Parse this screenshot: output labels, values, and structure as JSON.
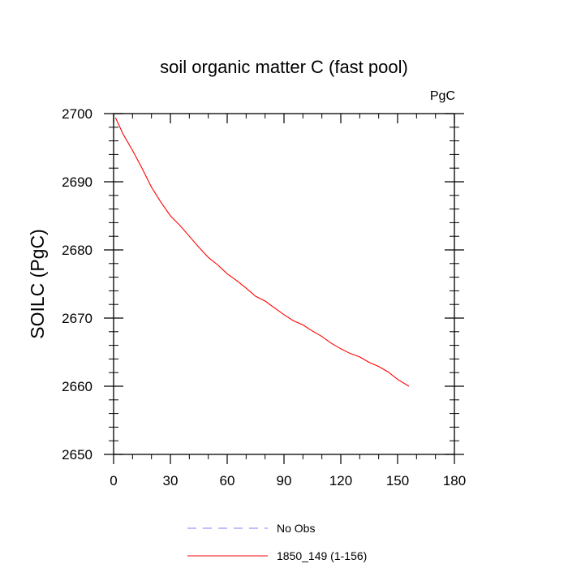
{
  "chart_data": {
    "type": "line",
    "title": "soil organic matter C (fast pool)",
    "units_label": "PgC",
    "ylabel": "SOILC  (PgC)",
    "xlabel": "",
    "xlim": [
      0,
      180
    ],
    "ylim": [
      2650,
      2700
    ],
    "x_ticks": [
      0,
      30,
      60,
      90,
      120,
      150,
      180
    ],
    "y_ticks": [
      2650,
      2660,
      2670,
      2680,
      2690,
      2700
    ],
    "grid": false,
    "legend_position": "bottom",
    "legend": [
      {
        "label": "No Obs",
        "color": "#7f7fff",
        "dash": "dashed"
      },
      {
        "label": "1850_149 (1-156)",
        "color": "#ff0000",
        "dash": "solid"
      }
    ],
    "series": [
      {
        "name": "1850_149 (1-156)",
        "color": "#ff0000",
        "x": [
          1,
          5,
          10,
          15,
          20,
          25,
          30,
          35,
          40,
          45,
          50,
          55,
          60,
          65,
          70,
          75,
          80,
          85,
          90,
          95,
          100,
          105,
          110,
          115,
          120,
          125,
          130,
          135,
          140,
          145,
          150,
          156
        ],
        "y": [
          2699.4,
          2697.0,
          2694.6,
          2692.0,
          2689.2,
          2687.0,
          2685.0,
          2683.6,
          2682.0,
          2680.4,
          2678.9,
          2677.8,
          2676.5,
          2675.5,
          2674.4,
          2673.2,
          2672.5,
          2671.5,
          2670.5,
          2669.6,
          2669.0,
          2668.1,
          2667.3,
          2666.3,
          2665.5,
          2664.8,
          2664.3,
          2663.5,
          2662.9,
          2662.1,
          2661.0,
          2660.0
        ]
      }
    ]
  }
}
